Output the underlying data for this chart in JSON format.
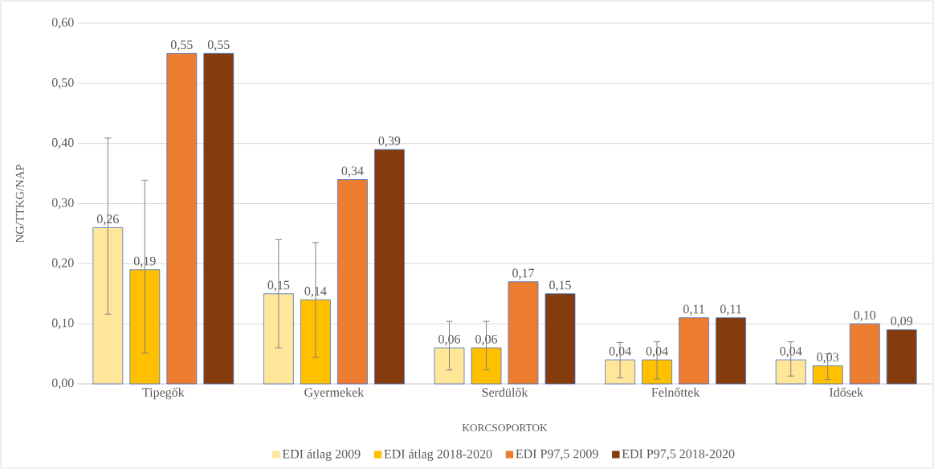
{
  "chart_data": {
    "type": "bar",
    "xlabel": "KORCSOPORTOK",
    "ylabel": "NG/TTKG/NAP",
    "categories": [
      "Tipegők",
      "Gyermekek",
      "Serdülők",
      "Felnőttek",
      "Idősek"
    ],
    "series": [
      {
        "name": "EDI átlag 2009",
        "color": "#ffe699",
        "values": [
          0.26,
          0.15,
          0.06,
          0.04,
          0.04
        ],
        "value_labels": [
          "0,26",
          "0,15",
          "0,06",
          "0,04",
          "0,04"
        ],
        "errors": [
          [
            0.116,
            0.409
          ],
          [
            0.06,
            0.24
          ],
          [
            0.023,
            0.104
          ],
          [
            0.01,
            0.069
          ],
          [
            0.013,
            0.07
          ]
        ]
      },
      {
        "name": "EDI átlag 2018-2020",
        "color": "#ffc000",
        "values": [
          0.19,
          0.14,
          0.06,
          0.04,
          0.03
        ],
        "value_labels": [
          "0,19",
          "0,14",
          "0,06",
          "0,04",
          "0,03"
        ],
        "errors": [
          [
            0.051,
            0.339
          ],
          [
            0.044,
            0.235
          ],
          [
            0.023,
            0.104
          ],
          [
            0.008,
            0.07
          ],
          [
            0.007,
            0.05
          ]
        ]
      },
      {
        "name": "EDI P97,5 2009",
        "color": "#ed7d31",
        "values": [
          0.55,
          0.34,
          0.17,
          0.11,
          0.1
        ],
        "value_labels": [
          "0,55",
          "0,34",
          "0,17",
          "0,11",
          "0,10"
        ]
      },
      {
        "name": "EDI P97,5 2018-2020",
        "color": "#843c0c",
        "values": [
          0.55,
          0.39,
          0.15,
          0.11,
          0.09
        ],
        "value_labels": [
          "0,55",
          "0,39",
          "0,15",
          "0,11",
          "0,09"
        ]
      }
    ],
    "ylim": [
      0,
      0.6
    ],
    "yticks": [
      {
        "value": 0,
        "label": "0,00"
      },
      {
        "value": 0.1,
        "label": "0,10"
      },
      {
        "value": 0.2,
        "label": "0,20"
      },
      {
        "value": 0.3,
        "label": "0,30"
      },
      {
        "value": 0.4,
        "label": "0,40"
      },
      {
        "value": 0.5,
        "label": "0,50"
      },
      {
        "value": 0.6,
        "label": "0,60"
      }
    ],
    "grid": "y",
    "legend": "bottom"
  }
}
